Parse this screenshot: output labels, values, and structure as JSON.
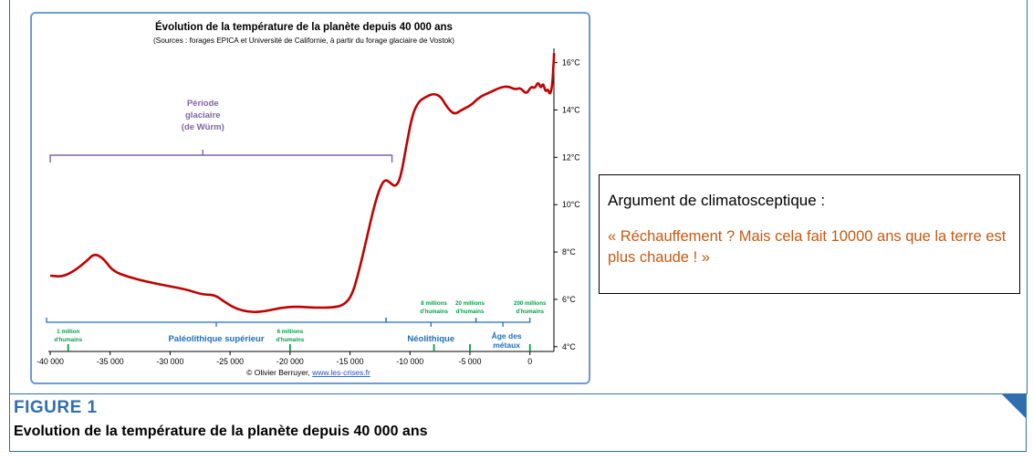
{
  "chart_data": {
    "type": "line",
    "title": "Évolution de la température de la planète depuis 40 000 ans",
    "subtitle": "(Sources : forages EPICA et Université de Californie, à partir du forage glaciaire de Vostok)",
    "xlabel": "",
    "ylabel": "",
    "xlim": [
      -40000,
      2000
    ],
    "ylim": [
      3.8,
      16.6
    ],
    "x_ticks": [
      -40000,
      -35000,
      -30000,
      -25000,
      -20000,
      -15000,
      -10000,
      -5000,
      0
    ],
    "x_tick_labels": [
      "-40 000",
      "-35 000",
      "-30 000",
      "-25 000",
      "-20 000",
      "-15 000",
      "-10 000",
      "-5 000",
      "0"
    ],
    "y_ticks": [
      4,
      6,
      8,
      10,
      12,
      14,
      16
    ],
    "y_tick_labels": [
      "4°C",
      "6°C",
      "8°C",
      "10°C",
      "12°C",
      "14°C",
      "16°C"
    ],
    "grid": false,
    "series": [
      {
        "color": "#c00000",
        "points": [
          [
            -40000,
            7.0
          ],
          [
            -39000,
            6.95
          ],
          [
            -38000,
            7.2
          ],
          [
            -37000,
            7.6
          ],
          [
            -36300,
            7.95
          ],
          [
            -35500,
            7.7
          ],
          [
            -34800,
            7.2
          ],
          [
            -33500,
            6.95
          ],
          [
            -32000,
            6.75
          ],
          [
            -30000,
            6.55
          ],
          [
            -28500,
            6.4
          ],
          [
            -27300,
            6.2
          ],
          [
            -26300,
            6.2
          ],
          [
            -25500,
            5.9
          ],
          [
            -24500,
            5.6
          ],
          [
            -23300,
            5.45
          ],
          [
            -22000,
            5.5
          ],
          [
            -20800,
            5.65
          ],
          [
            -19500,
            5.7
          ],
          [
            -18000,
            5.65
          ],
          [
            -16500,
            5.65
          ],
          [
            -15500,
            5.75
          ],
          [
            -14800,
            6.2
          ],
          [
            -14200,
            7.3
          ],
          [
            -13600,
            8.6
          ],
          [
            -13100,
            9.7
          ],
          [
            -12600,
            10.6
          ],
          [
            -12100,
            11.1
          ],
          [
            -11600,
            10.9
          ],
          [
            -11200,
            10.75
          ],
          [
            -10800,
            11.1
          ],
          [
            -10300,
            12.5
          ],
          [
            -9800,
            13.8
          ],
          [
            -9300,
            14.35
          ],
          [
            -8700,
            14.55
          ],
          [
            -8000,
            14.7
          ],
          [
            -7400,
            14.55
          ],
          [
            -6900,
            14.1
          ],
          [
            -6300,
            13.8
          ],
          [
            -5700,
            14.0
          ],
          [
            -4900,
            14.2
          ],
          [
            -4200,
            14.55
          ],
          [
            -3300,
            14.75
          ],
          [
            -2500,
            14.95
          ],
          [
            -1800,
            15.0
          ],
          [
            -1200,
            14.85
          ],
          [
            -800,
            14.95
          ],
          [
            -300,
            14.65
          ],
          [
            100,
            15.0
          ],
          [
            400,
            14.9
          ],
          [
            700,
            15.2
          ],
          [
            900,
            14.9
          ],
          [
            1100,
            15.15
          ],
          [
            1300,
            14.75
          ],
          [
            1500,
            14.9
          ],
          [
            1650,
            14.65
          ],
          [
            1800,
            14.85
          ],
          [
            1900,
            15.3
          ],
          [
            1950,
            15.8
          ],
          [
            1990,
            16.1
          ],
          [
            2010,
            16.4
          ]
        ]
      }
    ],
    "annotations": {
      "glacial": {
        "lines": [
          "Période",
          "glaciaire",
          "(de Würm)"
        ],
        "color": "#8064a2",
        "from": -40000,
        "to": -11500
      },
      "periods": [
        {
          "label": "Paléolithique supérieur",
          "from": -40000,
          "to": -12000,
          "color": "#1f6fb8"
        },
        {
          "label": "Néolithique",
          "from": -12000,
          "to": -4500,
          "color": "#1f6fb8"
        },
        {
          "label": "Âge des métaux",
          "lines": [
            "Âge des",
            "métaux"
          ],
          "from": -4500,
          "to": 0,
          "color": "#1f6fb8"
        }
      ],
      "population": [
        {
          "x": -38500,
          "lines": [
            "1 million",
            "d'humains"
          ]
        },
        {
          "x": -20000,
          "lines": [
            "6 millions",
            "d'humains"
          ]
        },
        {
          "x": -8000,
          "lines": [
            "8 millions",
            "d'humains"
          ]
        },
        {
          "x": -5000,
          "lines": [
            "20 millions",
            "d'humains"
          ]
        },
        {
          "x": 0,
          "lines": [
            "200 millions",
            "d'humains"
          ]
        }
      ],
      "population_color": "#00a14b"
    },
    "credit": "© Olivier Berruyer, ",
    "credit_link": "www.les-crises.fr"
  },
  "callout": {
    "heading": "Argument de climatosceptique :",
    "quote": "« Réchauffement ? Mais cela fait 10000 ans que la terre est plus chaude ! »"
  },
  "figure": {
    "label": "FIGURE 1",
    "title": "Evolution de la température de la planète depuis 40 000 ans"
  },
  "colors": {
    "accent": "#2f6fb0",
    "frame": "#6f9ad4",
    "quote": "#c55a11"
  }
}
